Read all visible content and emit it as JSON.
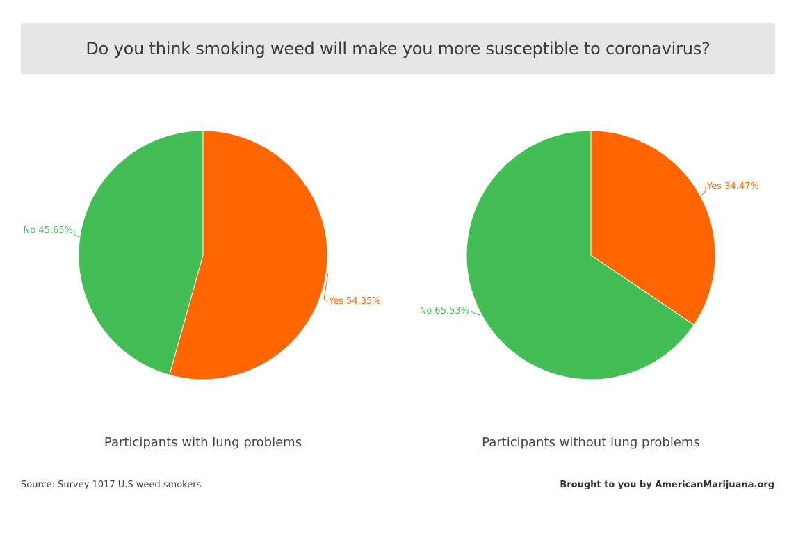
{
  "header": {
    "title": "Do you think smoking weed will make you more susceptible to coronavirus?"
  },
  "colors": {
    "yes": "#ff6600",
    "no": "#42be54",
    "title_bg": "#e6e6e6"
  },
  "chart_data": [
    {
      "type": "pie",
      "title": "Participants with lung problems",
      "slices": [
        {
          "label": "Yes",
          "value": 54.35,
          "display": "Yes 54.35%",
          "color": "#ff6600"
        },
        {
          "label": "No",
          "value": 45.65,
          "display": "No 45.65%",
          "color": "#42be54"
        }
      ],
      "start": "12 o'clock",
      "direction": "clockwise"
    },
    {
      "type": "pie",
      "title": "Participants without lung problems",
      "slices": [
        {
          "label": "Yes",
          "value": 34.47,
          "display": "Yes 34.47%",
          "color": "#ff6600"
        },
        {
          "label": "No",
          "value": 65.53,
          "display": "No 65.53%",
          "color": "#42be54"
        }
      ],
      "start": "12 o'clock",
      "direction": "clockwise"
    }
  ],
  "footer": {
    "source": "Source: Survey 1017 U.S weed smokers",
    "brand": "Brought to you by AmericanMarijuana.org"
  }
}
